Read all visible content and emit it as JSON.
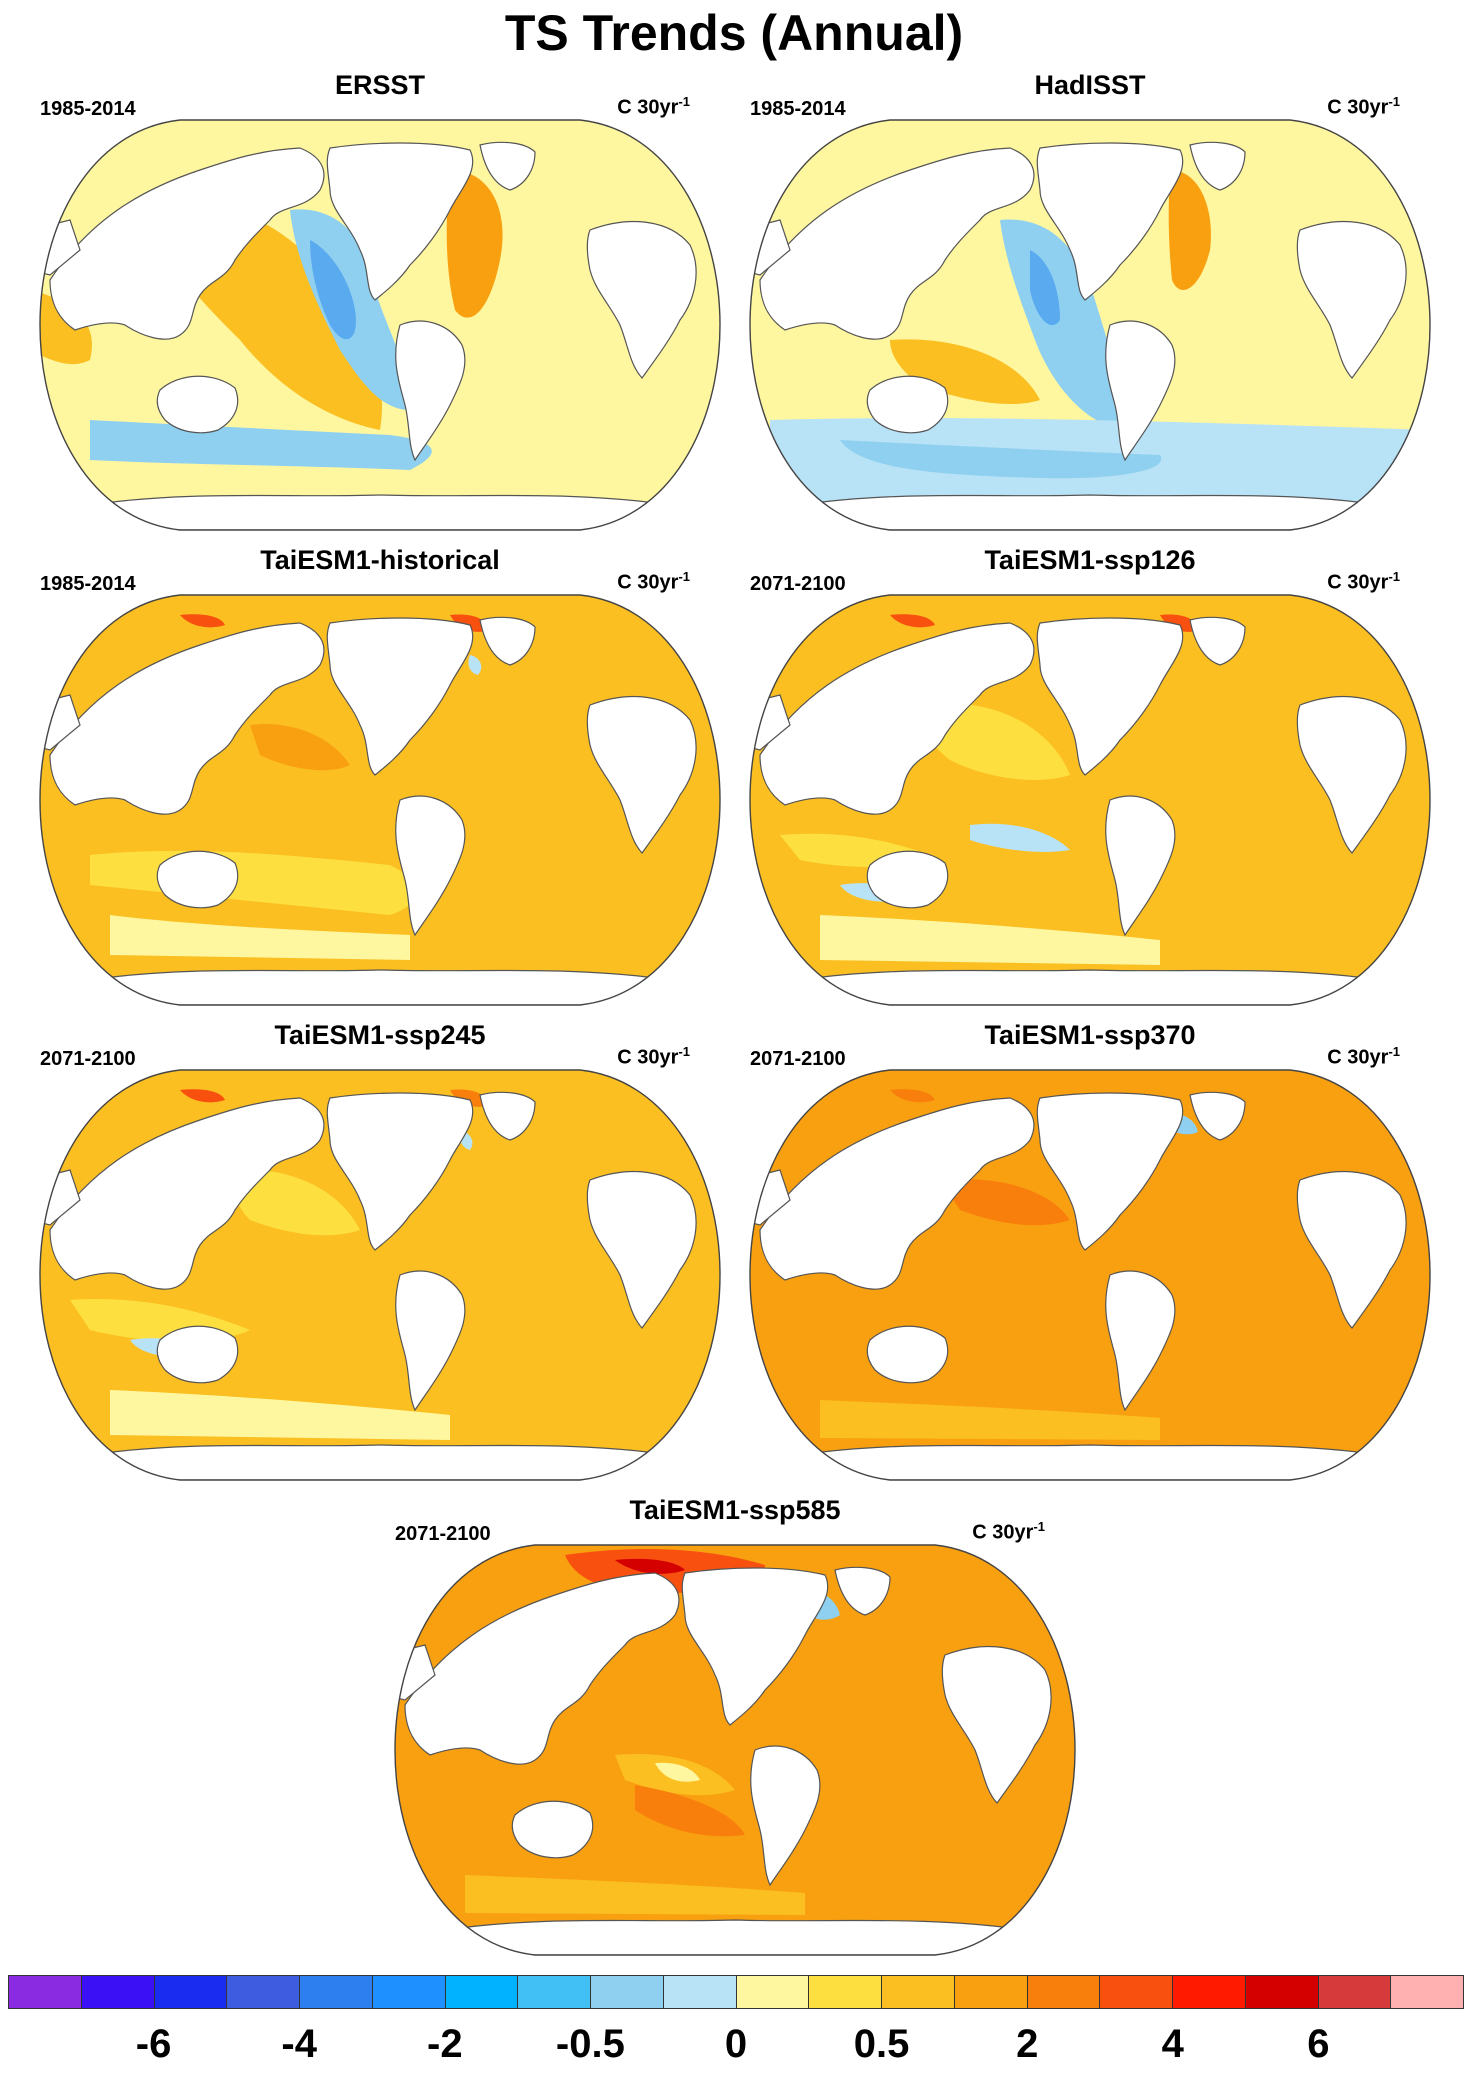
{
  "figure": {
    "title": "TS Trends (Annual)"
  },
  "panels": [
    {
      "title": "ERSST",
      "period": "1985-2014",
      "units_base": "C 30yr",
      "units_exp": "-1",
      "scheme": "obs_ersst"
    },
    {
      "title": "HadISST",
      "period": "1985-2014",
      "units_base": "C 30yr",
      "units_exp": "-1",
      "scheme": "obs_had"
    },
    {
      "title": "TaiESM1-historical",
      "period": "1985-2014",
      "units_base": "C 30yr",
      "units_exp": "-1",
      "scheme": "hist"
    },
    {
      "title": "TaiESM1-ssp126",
      "period": "2071-2100",
      "units_base": "C 30yr",
      "units_exp": "-1",
      "scheme": "ssp126"
    },
    {
      "title": "TaiESM1-ssp245",
      "period": "2071-2100",
      "units_base": "C 30yr",
      "units_exp": "-1",
      "scheme": "ssp245"
    },
    {
      "title": "TaiESM1-ssp370",
      "period": "2071-2100",
      "units_base": "C 30yr",
      "units_exp": "-1",
      "scheme": "ssp370"
    },
    {
      "title": "TaiESM1-ssp585",
      "period": "2071-2100",
      "units_base": "C 30yr",
      "units_exp": "-1",
      "scheme": "ssp585"
    }
  ],
  "colorbar": {
    "colors": [
      "#8a2be2",
      "#3b10f5",
      "#1a2cf0",
      "#3d5ce0",
      "#2d7ff0",
      "#1e90ff",
      "#00b2ff",
      "#40c0f5",
      "#8fd0f0",
      "#b8e2f5",
      "#fff7a0",
      "#fde040",
      "#fbbf22",
      "#f9a010",
      "#f97f0c",
      "#f8500f",
      "#ff1a00",
      "#d40000",
      "#d63a3a",
      "#ffb0b0"
    ],
    "labels": [
      "-6",
      "-4",
      "-2",
      "-0.5",
      "0",
      "0.5",
      "2",
      "4",
      "6"
    ]
  },
  "palette": {
    "land": "#ffffff",
    "coast": "#555555",
    "deep_blue": "#5aaaf0",
    "mid_blue": "#8fd0f0",
    "light_blue": "#b8e2f5",
    "pale_yellow": "#fff7a0",
    "yellow": "#fde040",
    "light_orange": "#fbbf22",
    "orange": "#f9a010",
    "dark_orange": "#f97f0c",
    "red": "#f8500f",
    "dark_red": "#d40000"
  }
}
